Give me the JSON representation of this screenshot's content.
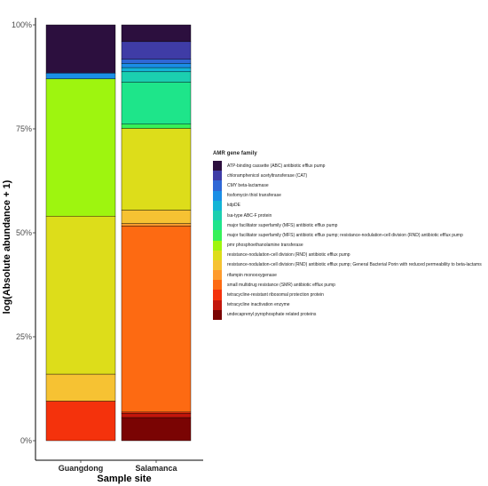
{
  "chart_data": {
    "type": "bar",
    "stacked": true,
    "categories": [
      "Guangdong",
      "Salamanca"
    ],
    "xlabel": "Sample site",
    "ylabel": "log(Absolute abundance + 1)",
    "ylim": [
      0,
      1
    ],
    "yticks": [
      {
        "value": 0,
        "label": "0%"
      },
      {
        "value": 0.25,
        "label": "25%"
      },
      {
        "value": 0.5,
        "label": "50%"
      },
      {
        "value": 0.75,
        "label": "75%"
      },
      {
        "value": 1,
        "label": "100%"
      }
    ],
    "grid": false,
    "legend": {
      "title": "AMR gene family",
      "position": "right"
    },
    "series": [
      {
        "name": "ATP-binding cassette (ABC) antibiotic efflux pump",
        "color": "#2c0f3e",
        "values": [
          0.116,
          0.04
        ]
      },
      {
        "name": "chloramphenicol acetyltransferase (CAT)",
        "color": "#3f3ca6",
        "values": [
          0,
          0.042
        ]
      },
      {
        "name": "CMY beta-lactamase",
        "color": "#2f67d6",
        "values": [
          0,
          0.01
        ]
      },
      {
        "name": "fosfomycin thiol transferase",
        "color": "#1a8ee6",
        "values": [
          0.014,
          0.01
        ]
      },
      {
        "name": "kdpDE",
        "color": "#13b4d6",
        "values": [
          0,
          0.01
        ]
      },
      {
        "name": "lsa-type ABC-F protein",
        "color": "#1bcfb0",
        "values": [
          0,
          0.025
        ]
      },
      {
        "name": "major facilitator superfamily (MFS) antibiotic efflux pump",
        "color": "#1ee58a",
        "values": [
          0,
          0.1
        ]
      },
      {
        "name": "major facilitator superfamily (MFS) antibiotic efflux pump; resistance-nodulation-cell division (RND) antibiotic efflux pump",
        "color": "#36f158",
        "values": [
          0,
          0.01
        ]
      },
      {
        "name": "pmr phosphoethanolamine transferase",
        "color": "#9ef50f",
        "values": [
          0.33,
          0
        ]
      },
      {
        "name": "resistance-nodulation-cell division (RND) antibiotic efflux pump",
        "color": "#dddd1a",
        "values": [
          0.38,
          0.195
        ]
      },
      {
        "name": "resistance-nodulation-cell division (RND) antibiotic efflux pump; General Bacterial Porin with reduced permeability to beta-lactams",
        "color": "#f6c233",
        "values": [
          0.065,
          0.032
        ]
      },
      {
        "name": "rifampin monooxygenase",
        "color": "#fe9b2d",
        "values": [
          0,
          0.006
        ]
      },
      {
        "name": "small multidrug resistance (SMR) antibiotic efflux pump",
        "color": "#fd6a12",
        "values": [
          0,
          0.444
        ]
      },
      {
        "name": "tetracycline-resistant ribosomal protection protein",
        "color": "#f4320c",
        "values": [
          0.095,
          0.003
        ]
      },
      {
        "name": "tetracycline inactivation enzyme",
        "color": "#c3160c",
        "values": [
          0,
          0.01
        ]
      },
      {
        "name": "undecaprenyl pyrophosphate related proteins",
        "color": "#7a0403",
        "values": [
          0,
          0.055
        ]
      }
    ]
  }
}
